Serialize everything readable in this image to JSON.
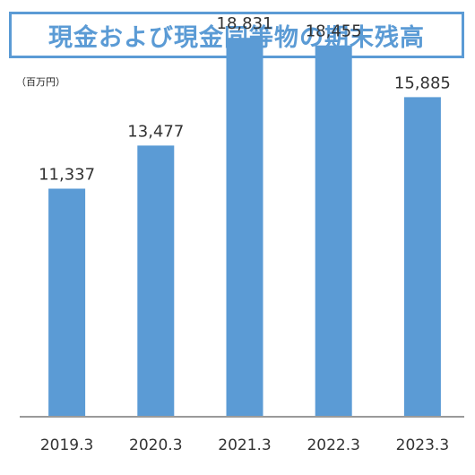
{
  "title": "現金および現金同等物の期末残高",
  "unit_label": "（百万円）",
  "chart_data": {
    "type": "bar",
    "title": "現金および現金同等物の期末残高",
    "ylabel": "（百万円）",
    "xlabel": "",
    "categories": [
      "2019.3",
      "2020.3",
      "2021.3",
      "2022.3",
      "2023.3"
    ],
    "values": [
      11337,
      13477,
      18831,
      18455,
      15885
    ],
    "value_labels": [
      "11,337",
      "13,477",
      "18,831",
      "18,455",
      "15,885"
    ],
    "ylim": [
      0,
      20000
    ],
    "grid": false,
    "legend": "none",
    "colors": {
      "bar": "#5b9bd5",
      "title": "#5b9bd5",
      "axis": "#9a9a9a"
    }
  }
}
